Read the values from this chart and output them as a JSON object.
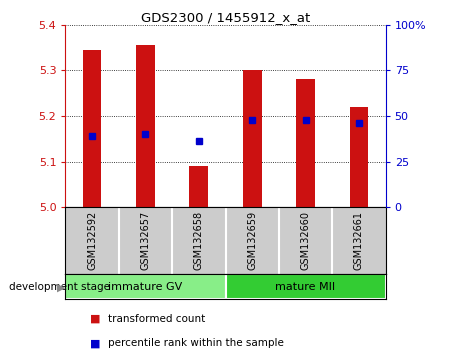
{
  "title": "GDS2300 / 1455912_x_at",
  "categories": [
    "GSM132592",
    "GSM132657",
    "GSM132658",
    "GSM132659",
    "GSM132660",
    "GSM132661"
  ],
  "bar_tops": [
    5.345,
    5.355,
    5.09,
    5.3,
    5.28,
    5.22
  ],
  "bar_bottom": 5.0,
  "blue_dots": [
    5.155,
    5.16,
    5.145,
    5.19,
    5.19,
    5.185
  ],
  "ylim": [
    5.0,
    5.4
  ],
  "yticks_left": [
    5.0,
    5.1,
    5.2,
    5.3,
    5.4
  ],
  "yticks_right": [
    0,
    25,
    50,
    75,
    100
  ],
  "bar_color": "#cc1111",
  "dot_color": "#0000cc",
  "bg_color": "#ffffff",
  "label_bg": "#cccccc",
  "group1_label": "immature GV",
  "group2_label": "mature MII",
  "group1_color": "#88ee88",
  "group2_color": "#33cc33",
  "group1_indices": [
    0,
    1,
    2
  ],
  "group2_indices": [
    3,
    4,
    5
  ],
  "dev_stage_label": "development stage",
  "legend_bar_label": "transformed count",
  "legend_dot_label": "percentile rank within the sample",
  "left_axis_color": "#cc1111",
  "right_axis_color": "#0000cc",
  "bar_width": 0.35
}
